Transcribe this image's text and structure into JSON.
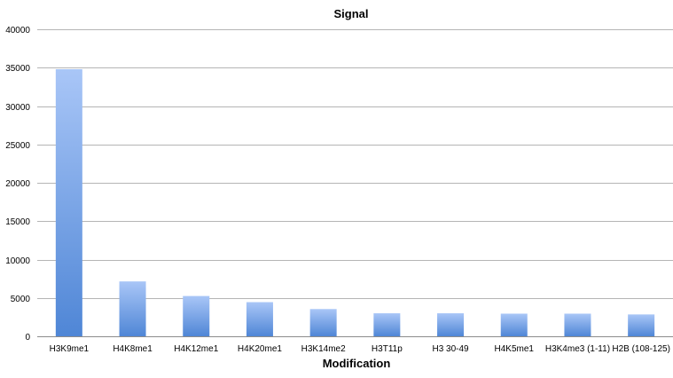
{
  "chart_data": {
    "type": "bar",
    "title": "Signal",
    "xlabel": "Modification",
    "ylabel": "",
    "ylim": [
      0,
      40000
    ],
    "yticks": [
      0,
      5000,
      10000,
      15000,
      20000,
      25000,
      30000,
      35000,
      40000
    ],
    "grid": true,
    "legend": "none",
    "categories": [
      "H3K9me1",
      "H4K8me1",
      "H4K12me1",
      "H4K20me1",
      "H3K14me2",
      "H3T11p",
      "H3 30-49",
      "H4K5me1",
      "H3K4me3 (1-11)",
      "H2B (108-125)"
    ],
    "series": [
      {
        "values": [
          34800,
          7150,
          5250,
          4450,
          3550,
          3000,
          3000,
          2950,
          2950,
          2850
        ]
      }
    ],
    "colors": {
      "bar_top": "#a9c6f7",
      "bar_bottom": "#4f86d6"
    }
  }
}
